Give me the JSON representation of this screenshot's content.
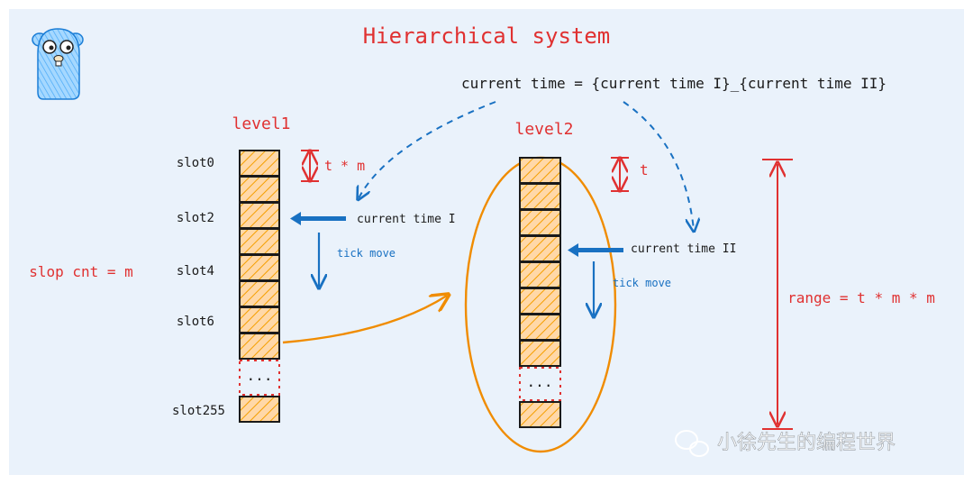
{
  "title": "Hierarchical system",
  "formula": "current time = {current time I}_{current time II}",
  "left_label": "slop cnt = m",
  "range_label": "range = t * m * m",
  "level1": {
    "name": "level1",
    "interval_label": "t * m",
    "slot_labels": [
      "slot0",
      "slot2",
      "slot4",
      "slot6",
      "slot255"
    ],
    "pointer_label": "current time I",
    "tick_label": "tick move",
    "ellipsis": "..."
  },
  "level2": {
    "name": "level2",
    "interval_label": "t",
    "pointer_label": "current time II",
    "tick_label": "tick move",
    "ellipsis": "..."
  },
  "watermark": "小徐先生的编程世界",
  "colors": {
    "red": "#e03131",
    "blue": "#1971c2",
    "orange": "#f08c00",
    "slot_fill": "#ffd8a8",
    "hatch": "#f59f00",
    "background": "#eaf2fb"
  },
  "icons": {
    "mascot": "gopher-mascot-icon",
    "watermark": "wechat-icon"
  }
}
